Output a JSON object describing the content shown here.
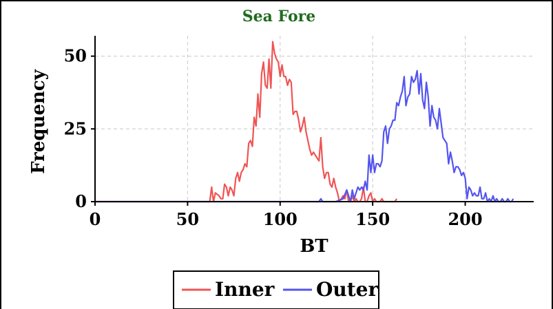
{
  "chart_data": {
    "type": "line",
    "title": "Sea Fore",
    "xlabel": "BT",
    "ylabel": "Frequency",
    "xlim": [
      0,
      237
    ],
    "ylim": [
      0,
      57
    ],
    "x_ticks": [
      "0",
      "50",
      "100",
      "150",
      "200"
    ],
    "y_ticks": [
      "0",
      "25",
      "50"
    ],
    "grid": true,
    "legend_position": "bottom-center",
    "series": [
      {
        "name": "Inner",
        "color": "#f05454",
        "points": [
          [
            0,
            0
          ],
          [
            62,
            0
          ],
          [
            63,
            5
          ],
          [
            64,
            0
          ],
          [
            65,
            3
          ],
          [
            67,
            2
          ],
          [
            68,
            1
          ],
          [
            69,
            1
          ],
          [
            70,
            6
          ],
          [
            71,
            5
          ],
          [
            72,
            2
          ],
          [
            73,
            5
          ],
          [
            74,
            4
          ],
          [
            75,
            2
          ],
          [
            76,
            8
          ],
          [
            77,
            10
          ],
          [
            78,
            7
          ],
          [
            79,
            10
          ],
          [
            80,
            11
          ],
          [
            81,
            13
          ],
          [
            82,
            12
          ],
          [
            83,
            20
          ],
          [
            84,
            21
          ],
          [
            85,
            19
          ],
          [
            86,
            29
          ],
          [
            87,
            26
          ],
          [
            88,
            37
          ],
          [
            89,
            29
          ],
          [
            90,
            44
          ],
          [
            91,
            48
          ],
          [
            92,
            40
          ],
          [
            93,
            39
          ],
          [
            94,
            49
          ],
          [
            95,
            39
          ],
          [
            96,
            55
          ],
          [
            97,
            51
          ],
          [
            98,
            49
          ],
          [
            99,
            48
          ],
          [
            100,
            43
          ],
          [
            101,
            47
          ],
          [
            102,
            43
          ],
          [
            103,
            43
          ],
          [
            104,
            40
          ],
          [
            105,
            42
          ],
          [
            106,
            41
          ],
          [
            107,
            30
          ],
          [
            108,
            31
          ],
          [
            109,
            31
          ],
          [
            110,
            28
          ],
          [
            111,
            24
          ],
          [
            112,
            26
          ],
          [
            113,
            29
          ],
          [
            114,
            24
          ],
          [
            115,
            21
          ],
          [
            116,
            18
          ],
          [
            117,
            16
          ],
          [
            118,
            17
          ],
          [
            119,
            16
          ],
          [
            120,
            15
          ],
          [
            121,
            14
          ],
          [
            122,
            22
          ],
          [
            123,
            12
          ],
          [
            124,
            8
          ],
          [
            125,
            10
          ],
          [
            126,
            10
          ],
          [
            127,
            6
          ],
          [
            128,
            5
          ],
          [
            129,
            8
          ],
          [
            130,
            5
          ],
          [
            131,
            3
          ],
          [
            132,
            0
          ],
          [
            133,
            1
          ],
          [
            134,
            2
          ],
          [
            135,
            1
          ],
          [
            136,
            4
          ],
          [
            137,
            0
          ],
          [
            138,
            0
          ],
          [
            139,
            2
          ],
          [
            140,
            0
          ],
          [
            141,
            1
          ],
          [
            142,
            0
          ],
          [
            143,
            0
          ],
          [
            144,
            1
          ],
          [
            145,
            5
          ],
          [
            146,
            0
          ],
          [
            147,
            0
          ],
          [
            148,
            2
          ],
          [
            149,
            3
          ],
          [
            150,
            0
          ],
          [
            151,
            1
          ],
          [
            152,
            0
          ],
          [
            153,
            0
          ],
          [
            154,
            0
          ],
          [
            155,
            1
          ],
          [
            156,
            0
          ],
          [
            157,
            0
          ],
          [
            158,
            0
          ],
          [
            159,
            0
          ],
          [
            160,
            0
          ],
          [
            161,
            0
          ],
          [
            162,
            0
          ],
          [
            163,
            1
          ]
        ]
      },
      {
        "name": "Outer",
        "color": "#5454f0",
        "points": [
          [
            0,
            0
          ],
          [
            100,
            0
          ],
          [
            110,
            0
          ],
          [
            121,
            0
          ],
          [
            122,
            1
          ],
          [
            123,
            0
          ],
          [
            130,
            0
          ],
          [
            134,
            1
          ],
          [
            136,
            4
          ],
          [
            137,
            2
          ],
          [
            138,
            0
          ],
          [
            139,
            4
          ],
          [
            140,
            1
          ],
          [
            141,
            3
          ],
          [
            142,
            5
          ],
          [
            143,
            4
          ],
          [
            144,
            5
          ],
          [
            145,
            4
          ],
          [
            146,
            7
          ],
          [
            147,
            4
          ],
          [
            148,
            16
          ],
          [
            149,
            10
          ],
          [
            150,
            16
          ],
          [
            151,
            10
          ],
          [
            152,
            13
          ],
          [
            153,
            13
          ],
          [
            154,
            12
          ],
          [
            155,
            14
          ],
          [
            156,
            24
          ],
          [
            157,
            26
          ],
          [
            158,
            20
          ],
          [
            159,
            25
          ],
          [
            160,
            26
          ],
          [
            161,
            28
          ],
          [
            162,
            28
          ],
          [
            163,
            34
          ],
          [
            164,
            33
          ],
          [
            165,
            36
          ],
          [
            166,
            38
          ],
          [
            167,
            43
          ],
          [
            168,
            33
          ],
          [
            169,
            36
          ],
          [
            170,
            37
          ],
          [
            171,
            43
          ],
          [
            172,
            41
          ],
          [
            173,
            42
          ],
          [
            174,
            45
          ],
          [
            175,
            37
          ],
          [
            176,
            44
          ],
          [
            177,
            35
          ],
          [
            178,
            32
          ],
          [
            179,
            41
          ],
          [
            180,
            36
          ],
          [
            181,
            26
          ],
          [
            182,
            33
          ],
          [
            183,
            29
          ],
          [
            184,
            28
          ],
          [
            185,
            25
          ],
          [
            186,
            32
          ],
          [
            187,
            27
          ],
          [
            188,
            22
          ],
          [
            189,
            21
          ],
          [
            190,
            20
          ],
          [
            191,
            13
          ],
          [
            192,
            17
          ],
          [
            193,
            14
          ],
          [
            194,
            10
          ],
          [
            195,
            12
          ],
          [
            196,
            12
          ],
          [
            197,
            11
          ],
          [
            198,
            9
          ],
          [
            199,
            10
          ],
          [
            200,
            8
          ],
          [
            201,
            1
          ],
          [
            202,
            5
          ],
          [
            203,
            4
          ],
          [
            204,
            2
          ],
          [
            205,
            3
          ],
          [
            206,
            2
          ],
          [
            207,
            2
          ],
          [
            208,
            5
          ],
          [
            209,
            1
          ],
          [
            210,
            1
          ],
          [
            211,
            3
          ],
          [
            212,
            0
          ],
          [
            213,
            1
          ],
          [
            214,
            0
          ],
          [
            215,
            2
          ],
          [
            216,
            0
          ],
          [
            217,
            1
          ],
          [
            218,
            0
          ],
          [
            219,
            0
          ],
          [
            220,
            1
          ],
          [
            221,
            0
          ],
          [
            222,
            0
          ],
          [
            223,
            1
          ],
          [
            224,
            0
          ],
          [
            225,
            0
          ],
          [
            226,
            1
          ]
        ]
      }
    ]
  }
}
